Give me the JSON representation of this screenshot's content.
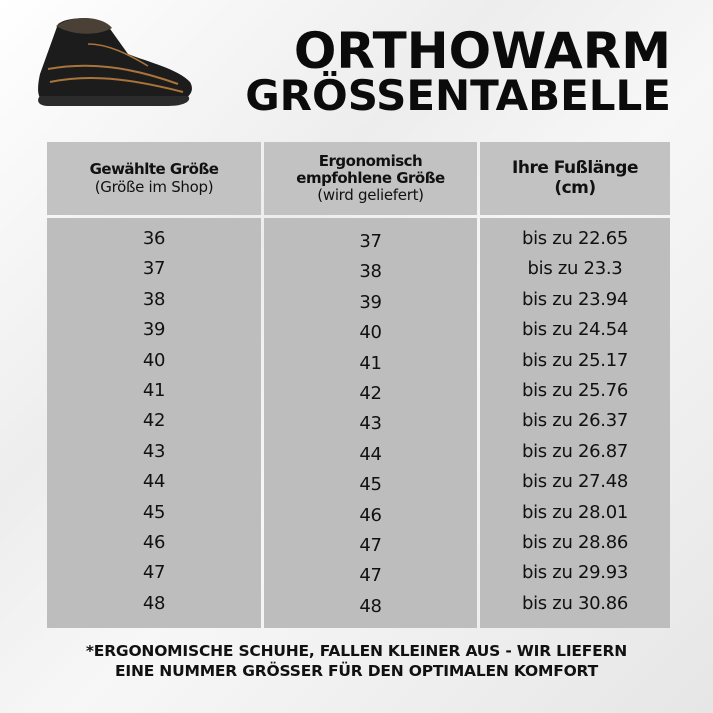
{
  "title": {
    "line1": "ORTHOWARM",
    "line2": "GRÖSSENTABELLE"
  },
  "image": {
    "icon": "winter-boot-image"
  },
  "table": {
    "headers": [
      {
        "bold": "Gewählte Größe",
        "normal": "(Größe im Shop)"
      },
      {
        "bold": "Ergonomisch empfohlene Größe",
        "normal": "(wird geliefert)"
      },
      {
        "bold": "Ihre Fußlänge",
        "bold2": "(cm)"
      }
    ],
    "chosen": [
      "36",
      "37",
      "38",
      "39",
      "40",
      "41",
      "42",
      "43",
      "44",
      "45",
      "46",
      "47",
      "48"
    ],
    "recommended": [
      "37",
      "38",
      "39",
      "40",
      "41",
      "42",
      "43",
      "44",
      "45",
      "46",
      "47",
      "47",
      "48"
    ],
    "foot_length": [
      "bis zu 22.65",
      "bis zu 23.3",
      "bis zu 23.94",
      "bis zu 24.54",
      "bis zu 25.17",
      "bis zu 25.76",
      "bis zu 26.37",
      "bis zu 26.87",
      "bis zu 27.48",
      "bis zu 28.01",
      "bis zu 28.86",
      "bis zu 29.93",
      "bis zu 30.86"
    ]
  },
  "footnote": {
    "line1": "*ERGONOMISCHE SCHUHE, FALLEN KLEINER AUS - WIR LIEFERN",
    "line2": "EINE NUMMER GRÖSSER FÜR DEN OPTIMALEN KOMFORT"
  },
  "colors": {
    "header_bg": "#c2c2c2",
    "body_bg": "#bdbdbd",
    "text": "#111111"
  }
}
